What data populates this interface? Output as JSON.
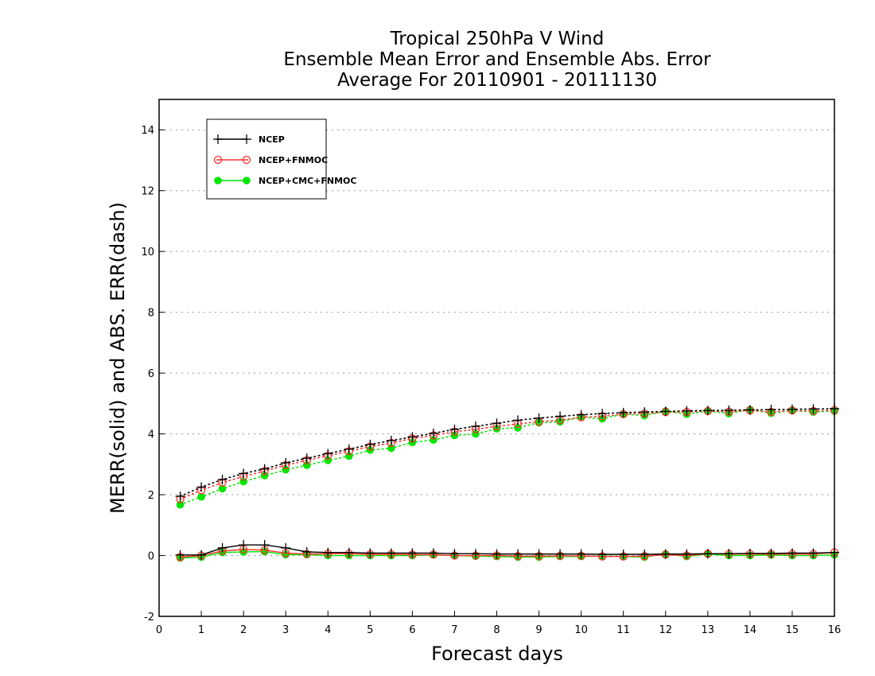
{
  "chart_data": {
    "type": "line",
    "title_lines": [
      "Tropical 250hPa V Wind",
      "Ensemble Mean Error and Ensemble Abs. Error",
      "Average For 20110901 - 20111130"
    ],
    "xlabel": "Forecast days",
    "ylabel": "MERR(solid) and ABS. ERR(dash)",
    "xlim": [
      0,
      16
    ],
    "ylim": [
      -2,
      15
    ],
    "xticks": [
      0,
      1,
      2,
      3,
      4,
      5,
      6,
      7,
      8,
      9,
      10,
      11,
      12,
      13,
      14,
      15,
      16
    ],
    "yticks": [
      -2,
      0,
      2,
      4,
      6,
      8,
      10,
      12,
      14
    ],
    "grid": "horizontal dotted",
    "legend_position": "top-left",
    "x": [
      0.5,
      1,
      1.5,
      2,
      2.5,
      3,
      3.5,
      4,
      4.5,
      5,
      5.5,
      6,
      6.5,
      7,
      7.5,
      8,
      8.5,
      9,
      9.5,
      10,
      10.5,
      11,
      11.5,
      12,
      12.5,
      13,
      13.5,
      14,
      14.5,
      15,
      15.5,
      16
    ],
    "series": [
      {
        "name": "NCEP",
        "color": "#000000",
        "marker": "plus",
        "merr": [
          0.02,
          0.02,
          0.25,
          0.35,
          0.35,
          0.25,
          0.12,
          0.1,
          0.1,
          0.08,
          0.08,
          0.08,
          0.08,
          0.06,
          0.06,
          0.05,
          0.05,
          0.05,
          0.05,
          0.05,
          0.04,
          0.04,
          0.04,
          0.05,
          0.05,
          0.06,
          0.06,
          0.07,
          0.07,
          0.08,
          0.08,
          0.1
        ],
        "abs_err": [
          1.95,
          2.25,
          2.5,
          2.7,
          2.85,
          3.05,
          3.2,
          3.35,
          3.5,
          3.65,
          3.78,
          3.9,
          4.02,
          4.15,
          4.25,
          4.35,
          4.45,
          4.52,
          4.58,
          4.63,
          4.67,
          4.7,
          4.72,
          4.74,
          4.76,
          4.77,
          4.78,
          4.79,
          4.8,
          4.81,
          4.82,
          4.83
        ]
      },
      {
        "name": "NCEP+FNMOC",
        "color": "#ff3030",
        "marker": "open-circle",
        "merr": [
          -0.05,
          0.0,
          0.15,
          0.2,
          0.18,
          0.08,
          0.05,
          0.06,
          0.06,
          0.04,
          0.04,
          0.03,
          0.03,
          0.0,
          0.0,
          0.0,
          -0.02,
          -0.02,
          -0.01,
          -0.01,
          -0.03,
          -0.03,
          -0.02,
          0.03,
          0.0,
          0.06,
          0.05,
          0.05,
          0.05,
          0.05,
          0.05,
          0.1
        ],
        "abs_err": [
          1.85,
          2.15,
          2.4,
          2.6,
          2.78,
          2.97,
          3.13,
          3.28,
          3.43,
          3.58,
          3.7,
          3.85,
          3.95,
          4.07,
          4.15,
          4.25,
          4.33,
          4.4,
          4.45,
          4.55,
          4.58,
          4.65,
          4.67,
          4.72,
          4.72,
          4.75,
          4.73,
          4.77,
          4.72,
          4.77,
          4.75,
          4.78
        ]
      },
      {
        "name": "NCEP+CMC+FNMOC",
        "color": "#00e600",
        "marker": "filled-circle",
        "merr": [
          -0.08,
          -0.05,
          0.1,
          0.12,
          0.13,
          0.03,
          0.03,
          0.0,
          0.0,
          0.0,
          0.0,
          0.0,
          0.02,
          0.0,
          -0.02,
          -0.03,
          -0.05,
          -0.05,
          -0.03,
          -0.03,
          -0.02,
          -0.03,
          -0.05,
          0.05,
          -0.03,
          0.05,
          0.0,
          0.0,
          0.02,
          0.0,
          0.0,
          0.02
        ],
        "abs_err": [
          1.67,
          1.93,
          2.2,
          2.43,
          2.63,
          2.82,
          2.97,
          3.13,
          3.27,
          3.47,
          3.53,
          3.72,
          3.8,
          3.95,
          4.0,
          4.17,
          4.2,
          4.37,
          4.4,
          4.55,
          4.5,
          4.65,
          4.6,
          4.75,
          4.65,
          4.75,
          4.67,
          4.8,
          4.68,
          4.77,
          4.72,
          4.75
        ]
      }
    ]
  }
}
